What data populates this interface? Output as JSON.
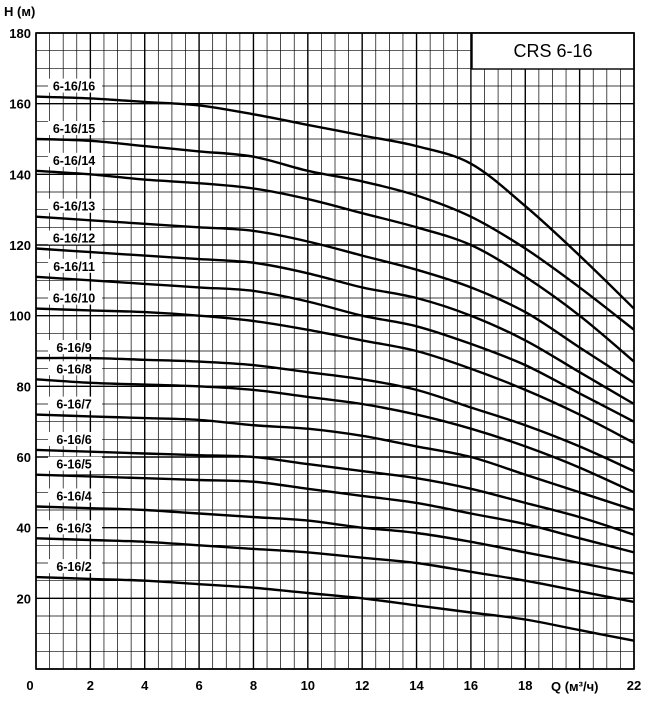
{
  "chart_data": {
    "type": "line",
    "title": "CRS 6-16",
    "xlabel": "Q (м³/ч)",
    "ylabel": "H (м)",
    "xlim": [
      0,
      22
    ],
    "ylim": [
      0,
      180
    ],
    "x_ticks": [
      "0",
      "2",
      "4",
      "6",
      "8",
      "10",
      "12",
      "14",
      "16",
      "18",
      "22"
    ],
    "y_ticks": [
      "20",
      "40",
      "60",
      "80",
      "100",
      "120",
      "140",
      "160",
      "180"
    ],
    "grid": true,
    "x": [
      0,
      2,
      4,
      6,
      8,
      10,
      12,
      14,
      16,
      18,
      20,
      22
    ],
    "series": [
      {
        "name": "6-16/16",
        "values": [
          162,
          161.5,
          160.5,
          159.5,
          157,
          154,
          151,
          148,
          143,
          131,
          117,
          102
        ]
      },
      {
        "name": "6-16/15",
        "values": [
          150,
          149.5,
          148,
          146.5,
          145,
          141,
          138,
          134,
          128,
          119,
          108,
          96
        ]
      },
      {
        "name": "6-16/14",
        "values": [
          141,
          140,
          138.5,
          137.5,
          136,
          133,
          129,
          125,
          120,
          111,
          100,
          87
        ]
      },
      {
        "name": "6-16/13",
        "values": [
          128,
          127,
          126,
          125,
          124,
          121,
          117,
          113,
          108,
          101,
          91,
          81
        ]
      },
      {
        "name": "6-16/12",
        "values": [
          119,
          118,
          117,
          116,
          115,
          112,
          108,
          105,
          100,
          93,
          84,
          75
        ]
      },
      {
        "name": "6-16/11",
        "values": [
          111,
          110,
          109,
          108,
          107,
          104,
          100,
          97,
          92,
          86,
          78,
          70
        ]
      },
      {
        "name": "6-16/10",
        "values": [
          102,
          101.5,
          101,
          100,
          98.5,
          96,
          93,
          90,
          85,
          79,
          72,
          64
        ]
      },
      {
        "name": "6-16/9",
        "values": [
          88,
          88,
          87.5,
          87,
          86,
          84,
          82,
          79,
          74,
          69,
          63,
          56
        ]
      },
      {
        "name": "6-16/8",
        "values": [
          82,
          81,
          80.5,
          80,
          79,
          77,
          75,
          72,
          68,
          63,
          57,
          50
        ]
      },
      {
        "name": "6-16/7",
        "values": [
          72,
          71.5,
          71,
          70.5,
          69,
          68,
          66,
          63,
          60,
          55,
          50,
          45
        ]
      },
      {
        "name": "6-16/6",
        "values": [
          62,
          61.5,
          61,
          60.5,
          60,
          58,
          56,
          54,
          51,
          47,
          43,
          38
        ]
      },
      {
        "name": "6-16/5",
        "values": [
          55,
          54.5,
          54,
          53.5,
          53,
          51,
          49,
          47,
          44,
          41,
          37,
          33
        ]
      },
      {
        "name": "6-16/4",
        "values": [
          46,
          45.5,
          45,
          44,
          43,
          42,
          40,
          38.5,
          36,
          33,
          30,
          27
        ]
      },
      {
        "name": "6-16/3",
        "values": [
          37,
          36.5,
          36,
          35,
          34,
          33,
          31.5,
          30,
          27.5,
          25,
          22,
          19
        ]
      },
      {
        "name": "6-16/2",
        "values": [
          26,
          25.5,
          25,
          24,
          23,
          21.5,
          20,
          18,
          16,
          14,
          11,
          8
        ]
      }
    ]
  }
}
